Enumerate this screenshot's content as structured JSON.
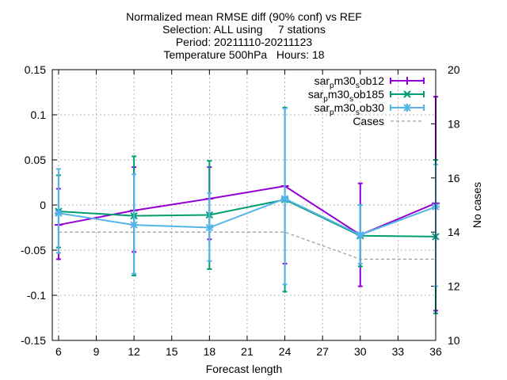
{
  "chart_data": {
    "type": "line",
    "title_lines": [
      "Normalized mean RMSE diff (90% conf) vs REF",
      "Selection: ALL using     7 stations",
      "Period: 20211110-20211123",
      "Temperature 500hPa   Hours: 18"
    ],
    "xlabel": "Forecast length",
    "ylabel": "",
    "y2label": "No cases",
    "xlim": [
      5.5,
      36
    ],
    "ylim": [
      -0.15,
      0.15
    ],
    "y2lim": [
      10,
      20
    ],
    "x_ticks": [
      6,
      9,
      12,
      15,
      18,
      21,
      24,
      27,
      30,
      33,
      36
    ],
    "y_ticks": [
      -0.15,
      -0.1,
      -0.05,
      0,
      0.05,
      0.1,
      0.15
    ],
    "y_tick_labels": [
      "-0.15",
      "-0.1",
      "-0.05",
      "0",
      "0.05",
      "0.1",
      "0.15"
    ],
    "y2_ticks": [
      10,
      12,
      14,
      16,
      18,
      20
    ],
    "grid": true,
    "legend_position": "top-right",
    "series": [
      {
        "name_parts": [
          "sar",
          "p",
          "m30",
          "s",
          "ob12"
        ],
        "color": "#9400d3",
        "marker": "plus",
        "x": [
          6,
          12,
          18,
          24,
          30,
          36
        ],
        "y": [
          -0.022,
          -0.006,
          0.007,
          0.021,
          -0.033,
          0.002
        ],
        "err_low": [
          -0.06,
          -0.052,
          -0.038,
          -0.065,
          -0.09,
          -0.117
        ],
        "err_high": [
          0.018,
          0.042,
          0.042,
          0.107,
          0.024,
          0.12
        ]
      },
      {
        "name_parts": [
          "sar",
          "p",
          "m30",
          "s",
          "ob185"
        ],
        "color": "#009e73",
        "marker": "cross",
        "x": [
          6,
          12,
          18,
          24,
          30,
          36
        ],
        "y": [
          -0.007,
          -0.012,
          -0.011,
          0.006,
          -0.034,
          -0.035
        ],
        "err_low": [
          -0.047,
          -0.078,
          -0.071,
          -0.096,
          -0.068,
          -0.12
        ],
        "err_high": [
          0.033,
          0.054,
          0.049,
          0.108,
          0.0,
          0.05
        ]
      },
      {
        "name_parts": [
          "sar",
          "p",
          "m30",
          "s",
          "ob30"
        ],
        "color": "#56b4e9",
        "marker": "star",
        "x": [
          6,
          12,
          18,
          24,
          30,
          36
        ],
        "y": [
          -0.009,
          -0.022,
          -0.025,
          0.007,
          -0.033,
          -0.002
        ],
        "err_low": [
          -0.053,
          -0.076,
          -0.062,
          -0.088,
          -0.065,
          -0.09
        ],
        "err_high": [
          0.04,
          0.034,
          0.013,
          0.107,
          0.0,
          0.045
        ]
      }
    ],
    "cases": {
      "name": "Cases",
      "color": "#a0a0a0",
      "axis": "y2",
      "x": [
        6,
        12,
        18,
        24,
        30,
        36
      ],
      "y": [
        14,
        14,
        14,
        14,
        13,
        13
      ]
    }
  }
}
